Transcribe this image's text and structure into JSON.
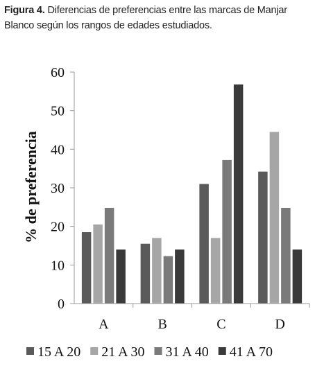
{
  "caption": {
    "label": "Figura 4.",
    "text": " Diferencias de preferencias entre las marcas de Manjar Blanco según los rangos de edades estudiados."
  },
  "chart_data": {
    "type": "bar",
    "categories": [
      "A",
      "B",
      "C",
      "D"
    ],
    "series": [
      {
        "name": "15 A 20",
        "color": "#5a5a5a",
        "values": [
          18.5,
          15.5,
          31,
          34.2
        ]
      },
      {
        "name": "21 A 30",
        "color": "#a6a6a6",
        "values": [
          20.5,
          17,
          17,
          44.5
        ]
      },
      {
        "name": "31 A 40",
        "color": "#7a7a7a",
        "values": [
          24.8,
          12.3,
          37.2,
          24.8
        ]
      },
      {
        "name": "41 A 70",
        "color": "#3a3a3a",
        "values": [
          14,
          14,
          56.8,
          14
        ]
      }
    ],
    "ylabel": "% de preferencia",
    "ylim": [
      0,
      60
    ],
    "yticks": [
      0,
      10,
      20,
      30,
      40,
      50,
      60
    ],
    "legend_position": "bottom",
    "grid": false
  }
}
